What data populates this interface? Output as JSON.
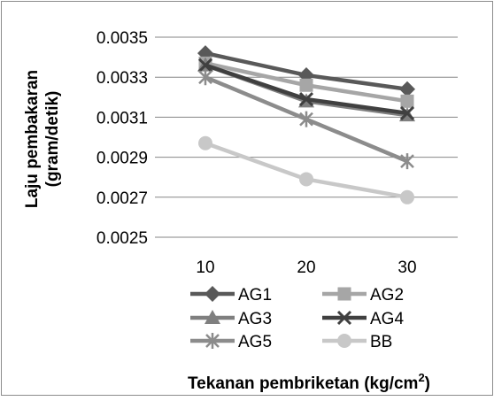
{
  "chart_data": {
    "type": "line",
    "title": "",
    "xlabel": "Tekanan pembriketan (kg/cm²)",
    "xlabel_main": "Tekanan pembriketan (kg/cm",
    "xlabel_sup": "2",
    "xlabel_tail": ")",
    "ylabel_line1": "Laju pembakaran",
    "ylabel_line2": "(gram/detik)",
    "x": [
      "10",
      "20",
      "30"
    ],
    "ylim": [
      0.0025,
      0.0035
    ],
    "yticks": [
      "0.0035",
      "0.0033",
      "0.0031",
      "0.0029",
      "0.0027",
      "0.0025"
    ],
    "grid": true,
    "legend_position": "bottom",
    "series": [
      {
        "name": "AG1",
        "values": [
          0.00342,
          0.00331,
          0.00324
        ],
        "color": "#595959",
        "marker": "diamond"
      },
      {
        "name": "AG2",
        "values": [
          0.00337,
          0.00326,
          0.00318
        ],
        "color": "#a6a6a6",
        "marker": "square"
      },
      {
        "name": "AG3",
        "values": [
          0.00336,
          0.00318,
          0.00311
        ],
        "color": "#7f7f7f",
        "marker": "triangle"
      },
      {
        "name": "AG4",
        "values": [
          0.00336,
          0.00319,
          0.00312
        ],
        "color": "#404040",
        "marker": "x"
      },
      {
        "name": "AG5",
        "values": [
          0.0033,
          0.00309,
          0.00288
        ],
        "color": "#8c8c8c",
        "marker": "star"
      },
      {
        "name": "BB",
        "values": [
          0.00297,
          0.00279,
          0.0027
        ],
        "color": "#c8c8c8",
        "marker": "circle"
      }
    ]
  }
}
